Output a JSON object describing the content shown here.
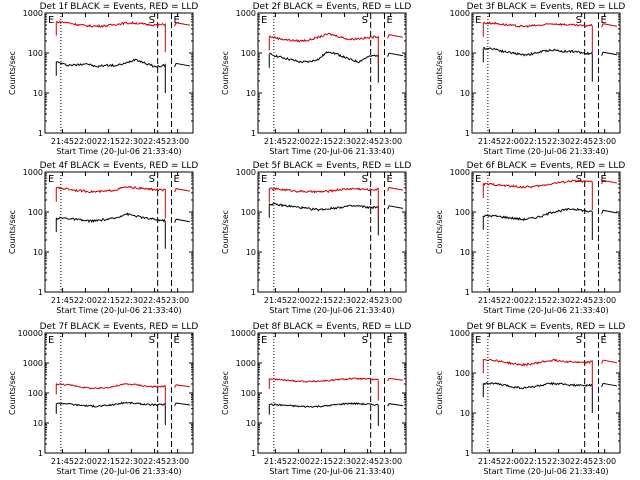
{
  "chart_data": [
    {
      "type": "line",
      "title": "Det 1f BLACK = Events, RED = LLD",
      "ylabel": "Counts/sec",
      "xlabel": "Start Time (20-Jul-06 21:33:40)",
      "y_scale": "log",
      "ylim": [
        1,
        1000
      ],
      "yticks": [
        "1",
        "10",
        "100",
        "1000"
      ],
      "xlim": [
        "21:33:40",
        "23:10"
      ],
      "xticks": [
        "21:45",
        "22:00",
        "22:15",
        "22:30",
        "22:45",
        "23:00"
      ],
      "event_markers": [
        "E",
        "S",
        "E"
      ],
      "series": [
        {
          "color": "#000000",
          "approx_level": [
            60,
            50,
            50,
            55,
            45,
            50,
            48,
            55,
            70,
            55,
            45,
            50
          ],
          "gap_after": "22:52"
        },
        {
          "color": "#cc0000",
          "approx_level": [
            600,
            580,
            520,
            480,
            470,
            480,
            520,
            560,
            560,
            520,
            500,
            520
          ],
          "gap_after": "22:52"
        }
      ]
    },
    {
      "type": "line",
      "title": "Det 2f BLACK = Events, RED = LLD",
      "ylabel": "Counts/sec",
      "xlabel": "Start Time (20-Jul-06 21:33:40)",
      "y_scale": "log",
      "ylim": [
        1,
        1000
      ],
      "yticks": [
        "1",
        "10",
        "100",
        "1000"
      ],
      "xlim": [
        "21:33:40",
        "23:10"
      ],
      "xticks": [
        "21:45",
        "22:00",
        "22:15",
        "22:30",
        "22:45",
        "23:00"
      ],
      "event_markers": [
        "E",
        "S",
        "E"
      ],
      "series": [
        {
          "color": "#000000",
          "approx_level": [
            95,
            80,
            70,
            60,
            60,
            70,
            110,
            90,
            70,
            60,
            80,
            90
          ],
          "gap_after": "22:52"
        },
        {
          "color": "#cc0000",
          "approx_level": [
            260,
            230,
            210,
            200,
            210,
            250,
            300,
            260,
            220,
            230,
            240,
            260
          ],
          "gap_after": "22:52"
        }
      ]
    },
    {
      "type": "line",
      "title": "Det 3f BLACK = Events, RED = LLD",
      "ylabel": "Counts/sec",
      "xlabel": "Start Time (20-Jul-06 21:33:40)",
      "y_scale": "log",
      "ylim": [
        1,
        1000
      ],
      "yticks": [
        "1",
        "10",
        "100",
        "1000"
      ],
      "xlim": [
        "21:33:40",
        "23:10"
      ],
      "xticks": [
        "21:45",
        "22:00",
        "22:15",
        "22:30",
        "22:45",
        "23:00"
      ],
      "event_markers": [
        "E",
        "S",
        "E"
      ],
      "series": [
        {
          "color": "#000000",
          "approx_level": [
            130,
            130,
            110,
            100,
            90,
            95,
            110,
            120,
            110,
            110,
            100,
            95
          ],
          "gap_after": "22:52"
        },
        {
          "color": "#cc0000",
          "approx_level": [
            560,
            560,
            520,
            480,
            460,
            480,
            500,
            540,
            520,
            500,
            480,
            490
          ],
          "gap_after": "22:52"
        }
      ]
    },
    {
      "type": "line",
      "title": "Det 4f BLACK = Events, RED = LLD",
      "ylabel": "Counts/sec",
      "xlabel": "Start Time (20-Jul-06 21:33:40)",
      "y_scale": "log",
      "ylim": [
        1,
        1000
      ],
      "yticks": [
        "1",
        "10",
        "100",
        "1000"
      ],
      "xlim": [
        "21:33:40",
        "23:10"
      ],
      "xticks": [
        "21:45",
        "22:00",
        "22:15",
        "22:30",
        "22:45",
        "23:00"
      ],
      "event_markers": [
        "E",
        "S",
        "E"
      ],
      "series": [
        {
          "color": "#000000",
          "approx_level": [
            70,
            70,
            65,
            60,
            60,
            65,
            70,
            90,
            80,
            70,
            65,
            60
          ],
          "gap_after": "22:52"
        },
        {
          "color": "#cc0000",
          "approx_level": [
            400,
            380,
            350,
            330,
            320,
            330,
            360,
            420,
            400,
            380,
            360,
            350
          ],
          "gap_after": "22:52"
        }
      ]
    },
    {
      "type": "line",
      "title": "Det 5f BLACK = Events, RED = LLD",
      "ylabel": "Counts/sec",
      "xlabel": "Start Time (20-Jul-06 21:33:40)",
      "y_scale": "log",
      "ylim": [
        1,
        1000
      ],
      "yticks": [
        "1",
        "10",
        "100",
        "1000"
      ],
      "xlim": [
        "21:33:40",
        "23:10"
      ],
      "xticks": [
        "21:45",
        "22:00",
        "22:15",
        "22:30",
        "22:45",
        "23:00"
      ],
      "event_markers": [
        "E",
        "S",
        "E"
      ],
      "series": [
        {
          "color": "#000000",
          "approx_level": [
            160,
            150,
            140,
            130,
            120,
            115,
            120,
            130,
            140,
            140,
            130,
            130
          ],
          "gap_after": "22:52"
        },
        {
          "color": "#cc0000",
          "approx_level": [
            380,
            370,
            350,
            330,
            320,
            320,
            330,
            360,
            380,
            380,
            360,
            370
          ],
          "gap_after": "22:52"
        }
      ]
    },
    {
      "type": "line",
      "title": "Det 6f BLACK = Events, RED = LLD",
      "ylabel": "Counts/sec",
      "xlabel": "Start Time (20-Jul-06 21:33:40)",
      "y_scale": "log",
      "ylim": [
        1,
        1000
      ],
      "yticks": [
        "1",
        "10",
        "100",
        "1000"
      ],
      "xlim": [
        "21:33:40",
        "23:10"
      ],
      "xticks": [
        "21:45",
        "22:00",
        "22:15",
        "22:30",
        "22:45",
        "23:00"
      ],
      "event_markers": [
        "E",
        "S",
        "E"
      ],
      "series": [
        {
          "color": "#000000",
          "approx_level": [
            80,
            80,
            75,
            70,
            65,
            70,
            80,
            100,
            110,
            120,
            110,
            100
          ],
          "gap_after": "22:52"
        },
        {
          "color": "#cc0000",
          "approx_level": [
            500,
            490,
            460,
            440,
            420,
            430,
            460,
            520,
            560,
            600,
            580,
            560
          ],
          "gap_after": "22:52"
        }
      ]
    },
    {
      "type": "line",
      "title": "Det 7f BLACK = Events, RED = LLD",
      "ylabel": "Counts/sec",
      "xlabel": "Start Time (20-Jul-06 21:33:40)",
      "y_scale": "log",
      "ylim": [
        1,
        10000
      ],
      "yticks": [
        "1",
        "10",
        "100",
        "1000",
        "10000"
      ],
      "xlim": [
        "21:33:40",
        "23:10"
      ],
      "xticks": [
        "21:45",
        "22:00",
        "22:15",
        "22:30",
        "22:45",
        "23:00"
      ],
      "event_markers": [
        "E",
        "S",
        "E"
      ],
      "series": [
        {
          "color": "#000000",
          "approx_level": [
            45,
            45,
            40,
            38,
            36,
            38,
            42,
            48,
            45,
            42,
            40,
            42
          ],
          "gap_after": "22:52"
        },
        {
          "color": "#cc0000",
          "approx_level": [
            200,
            190,
            170,
            150,
            140,
            150,
            170,
            200,
            190,
            170,
            160,
            170
          ],
          "gap_after": "22:52"
        }
      ]
    },
    {
      "type": "line",
      "title": "Det 8f BLACK = Events, RED = LLD",
      "ylabel": "Counts/sec",
      "xlabel": "Start Time (20-Jul-06 21:33:40)",
      "y_scale": "log",
      "ylim": [
        1,
        10000
      ],
      "yticks": [
        "1",
        "10",
        "100",
        "1000",
        "10000"
      ],
      "xlim": [
        "21:33:40",
        "23:10"
      ],
      "xticks": [
        "21:45",
        "22:00",
        "22:15",
        "22:30",
        "22:45",
        "23:00"
      ],
      "event_markers": [
        "E",
        "S",
        "E"
      ],
      "series": [
        {
          "color": "#000000",
          "approx_level": [
            42,
            40,
            38,
            36,
            35,
            36,
            38,
            42,
            45,
            44,
            42,
            40
          ],
          "gap_after": "22:52"
        },
        {
          "color": "#cc0000",
          "approx_level": [
            300,
            280,
            260,
            250,
            240,
            250,
            260,
            280,
            300,
            300,
            290,
            280
          ],
          "gap_after": "22:52"
        }
      ]
    },
    {
      "type": "line",
      "title": "Det 9f BLACK = Events, RED = LLD",
      "ylabel": "Counts/sec",
      "xlabel": "Start Time (20-Jul-06 21:33:40)",
      "y_scale": "log",
      "ylim": [
        1,
        1000
      ],
      "yticks": [
        "1",
        "10",
        "100",
        "1000"
      ],
      "xlim": [
        "21:33:40",
        "23:10"
      ],
      "xticks": [
        "21:45",
        "22:00",
        "22:15",
        "22:30",
        "22:45",
        "23:00"
      ],
      "event_markers": [
        "E",
        "S",
        "E"
      ],
      "series": [
        {
          "color": "#000000",
          "approx_level": [
            55,
            55,
            50,
            45,
            42,
            45,
            50,
            55,
            52,
            50,
            48,
            50
          ],
          "gap_after": "22:52"
        },
        {
          "color": "#cc0000",
          "approx_level": [
            220,
            210,
            190,
            170,
            160,
            170,
            190,
            210,
            200,
            190,
            180,
            190
          ],
          "gap_after": "22:52"
        }
      ]
    }
  ]
}
